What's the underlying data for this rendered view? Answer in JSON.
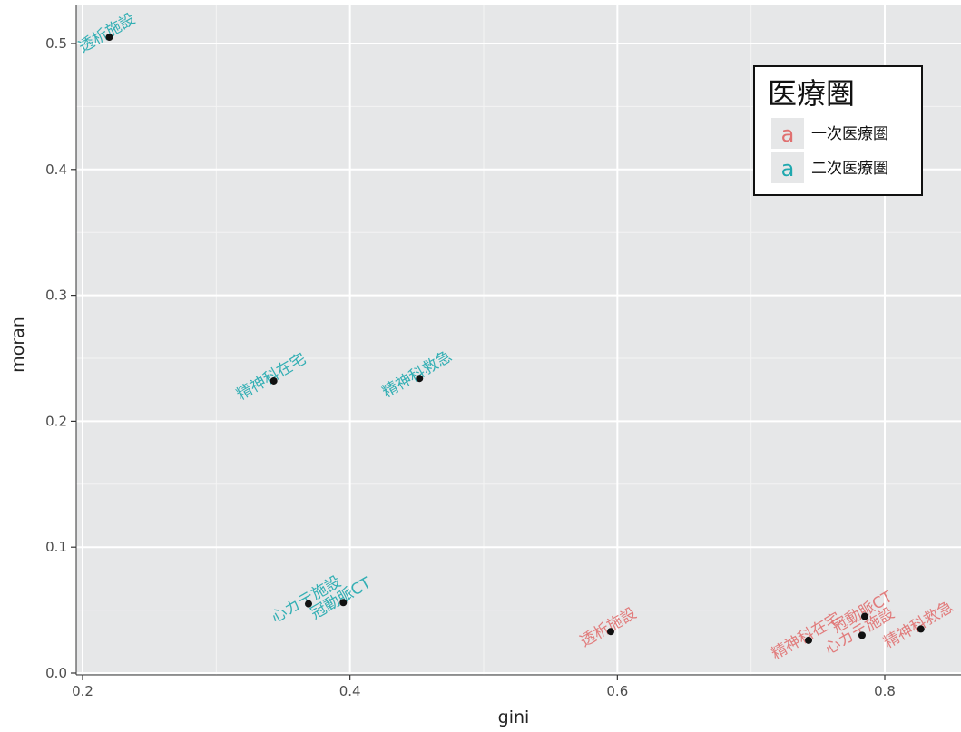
{
  "chart_data": {
    "type": "scatter",
    "xlabel": "gini",
    "ylabel": "moran",
    "xlim": [
      0.195,
      0.855
    ],
    "ylim": [
      0.0,
      0.515
    ],
    "x_ticks": [
      0.2,
      0.4,
      0.6,
      0.8
    ],
    "y_ticks": [
      0.0,
      0.1,
      0.2,
      0.3,
      0.4,
      0.5
    ],
    "x_tick_labels": [
      "0.2",
      "0.4",
      "0.6",
      "0.8"
    ],
    "y_tick_labels": [
      "0.0",
      "0.1",
      "0.2",
      "0.3",
      "0.4",
      "0.5"
    ],
    "grid": true,
    "legend": {
      "title": "医療圏",
      "position": "top-right",
      "key_glyph": "a",
      "entries": [
        {
          "label": "一次医療圏",
          "color": "#E07070"
        },
        {
          "label": "二次医療圏",
          "color": "#1FA8AE"
        }
      ]
    },
    "series": [
      {
        "name": "一次医療圏",
        "color": "#E07070",
        "points": [
          {
            "x": 0.595,
            "y": 0.033,
            "label": "透析施設"
          },
          {
            "x": 0.743,
            "y": 0.026,
            "label": "精神科在宅"
          },
          {
            "x": 0.785,
            "y": 0.045,
            "label": "冠動脈CT"
          },
          {
            "x": 0.783,
            "y": 0.03,
            "label": "心カテ施設"
          },
          {
            "x": 0.827,
            "y": 0.035,
            "label": "精神科救急"
          }
        ]
      },
      {
        "name": "二次医療圏",
        "color": "#1FA8AE",
        "points": [
          {
            "x": 0.22,
            "y": 0.505,
            "label": "透析施設"
          },
          {
            "x": 0.343,
            "y": 0.232,
            "label": "精神科在宅"
          },
          {
            "x": 0.452,
            "y": 0.234,
            "label": "精神科救急"
          },
          {
            "x": 0.369,
            "y": 0.055,
            "label": "心カテ施設"
          },
          {
            "x": 0.395,
            "y": 0.056,
            "label": "冠動脈CT"
          }
        ]
      }
    ]
  }
}
